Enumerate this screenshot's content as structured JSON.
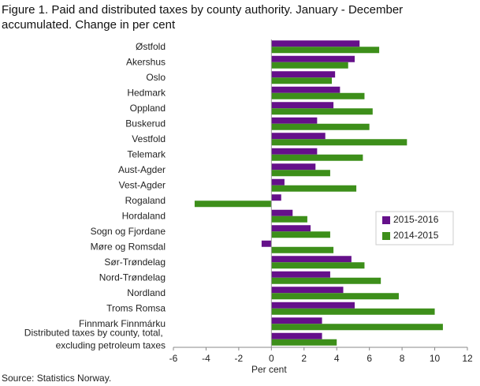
{
  "chart_data": {
    "type": "hbar",
    "title": "Figure 1. Paid and distributed taxes by county authority. January - December accumulated. Change in per cent",
    "x_label": "Per cent",
    "source": "Source: Statistics Norway.",
    "categories": [
      "Østfold",
      "Akershus",
      "Oslo",
      "Hedmark",
      "Oppland",
      "Buskerud",
      "Vestfold",
      "Telemark",
      "Aust-Agder",
      "Vest-Agder",
      "Rogaland",
      "Hordaland",
      "Sogn og Fjordane",
      "Møre og Romsdal",
      "Sør-Trøndelag",
      "Nord-Trøndelag",
      "Nordland",
      "Troms Romsa",
      "Finnmark Finnmárku",
      "Distributed taxes by county, total, excluding petroleum taxes"
    ],
    "series": [
      {
        "name": "2015-2016",
        "color": "#65108a",
        "values": [
          5.4,
          5.1,
          3.9,
          4.2,
          3.8,
          2.8,
          3.3,
          2.8,
          2.7,
          0.8,
          0.6,
          1.3,
          2.4,
          -0.6,
          4.9,
          3.6,
          4.4,
          5.1,
          3.1,
          3.1
        ]
      },
      {
        "name": "2014-2015",
        "color": "#3d8f1a",
        "values": [
          6.6,
          4.7,
          3.7,
          5.7,
          6.2,
          6.0,
          8.3,
          5.6,
          3.6,
          5.2,
          -4.7,
          2.2,
          3.6,
          3.8,
          5.7,
          6.7,
          7.8,
          10.0,
          10.5,
          4.0
        ]
      }
    ],
    "xlim": [
      -6,
      12
    ],
    "xticks": [
      -6,
      -4,
      -2,
      0,
      2,
      4,
      6,
      8,
      10,
      12
    ],
    "legend_position": "center right",
    "grid": false
  }
}
